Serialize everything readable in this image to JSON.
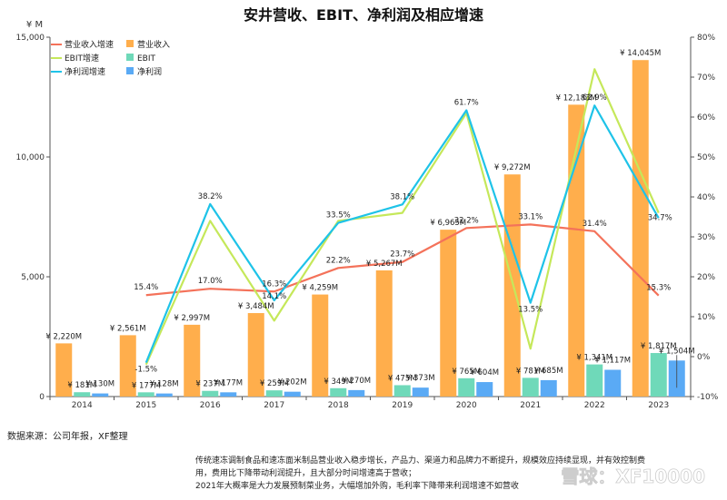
{
  "chart_data": {
    "type": "bar",
    "title": "安井营收、EBIT、净利润及相应增速",
    "y_left_unit": "¥ M",
    "y_left_ticks": [
      "0",
      "5,000",
      "10,000",
      "15,000"
    ],
    "y_left_range": [
      0,
      15000
    ],
    "y_right_ticks": [
      "-10%",
      "0%",
      "10%",
      "20%",
      "30%",
      "40%",
      "50%",
      "60%",
      "70%",
      "80%"
    ],
    "y_right_range": [
      -10,
      80
    ],
    "categories": [
      "2014",
      "2015",
      "2016",
      "2017",
      "2018",
      "2019",
      "2020",
      "2021",
      "2022",
      "2023"
    ],
    "bar_series": [
      {
        "name": "营业收入",
        "color": "#ffae4c",
        "values": [
          2220,
          2561,
          2997,
          3484,
          4259,
          5267,
          6965,
          9272,
          12183,
          14045
        ],
        "labels": [
          "¥ 2,220M",
          "¥ 2,561M",
          "¥ 2,997M",
          "¥ 3,484M",
          "¥ 4,259M",
          "¥ 5,267M",
          "¥ 6,965M",
          "¥ 9,272M",
          "¥ 12,183M",
          "¥ 14,045M"
        ]
      },
      {
        "name": "EBIT",
        "color": "#6fd9b9",
        "values": [
          181,
          177,
          237,
          259,
          349,
          475,
          765,
          781,
          1341,
          1817
        ],
        "labels": [
          "¥ 181M",
          "¥ 177M",
          "¥ 237M",
          "¥ 259M",
          "¥ 349M",
          "¥ 475M",
          "¥ 765M",
          "¥ 781M",
          "¥ 1,341M",
          "¥ 1,817M"
        ]
      },
      {
        "name": "净利润",
        "color": "#5aaaf5",
        "values": [
          130,
          128,
          177,
          202,
          270,
          373,
          604,
          685,
          1117,
          1504
        ],
        "labels": [
          "¥ 130M",
          "¥ 128M",
          "¥ 177M",
          "¥ 202M",
          "¥ 270M",
          "¥ 373M",
          "¥ 604M",
          "¥ 685M",
          "¥ 1,117M",
          "¥ 1,504M"
        ]
      }
    ],
    "line_series": [
      {
        "name": "营业收入增速",
        "color": "#f4725a",
        "values": [
          null,
          15.4,
          17.0,
          16.3,
          22.2,
          23.7,
          32.2,
          33.1,
          31.4,
          15.3
        ],
        "labels": [
          null,
          "15.4%",
          "17.0%",
          "16.3%",
          "22.2%",
          "23.7%",
          "32.2%",
          "33.1%",
          "31.4%",
          "15.3%"
        ]
      },
      {
        "name": "EBIT增速",
        "color": "#c5e85a",
        "values": [
          null,
          -2.0,
          34.0,
          9.0,
          34.0,
          36.0,
          61.0,
          2.0,
          72.0,
          36.0
        ],
        "labels": [
          null,
          null,
          null,
          null,
          null,
          null,
          null,
          null,
          null,
          null
        ]
      },
      {
        "name": "净利润增速",
        "color": "#1ec3e8",
        "values": [
          null,
          -1.5,
          38.2,
          14.1,
          33.5,
          38.1,
          61.7,
          13.5,
          62.9,
          34.7
        ],
        "labels": [
          null,
          "-1.5%",
          "38.2%",
          "14.1%",
          "33.5%",
          "38.1%",
          "61.7%",
          "13.5%",
          "62.9%",
          "34.7%"
        ]
      }
    ],
    "legend": [
      {
        "name": "营业收入增速",
        "kind": "line",
        "color": "#f4725a"
      },
      {
        "name": "营业收入",
        "kind": "box",
        "color": "#ffae4c"
      },
      {
        "name": "EBIT增速",
        "kind": "line",
        "color": "#c5e85a"
      },
      {
        "name": "EBIT",
        "kind": "box",
        "color": "#6fd9b9"
      },
      {
        "name": "净利润增速",
        "kind": "line",
        "color": "#1ec3e8"
      },
      {
        "name": "净利润",
        "kind": "box",
        "color": "#5aaaf5"
      }
    ],
    "legend_position": "top-left",
    "grid": false
  },
  "source": "数据来源：公司年报，XF整理",
  "notes": [
    "传统速冻调制食品和速冻面米制品营业收入稳步增长，产品力、渠道力和品牌力不断提升，规模效应持续显现，并有效控制费",
    "用，费用比下降带动利润提升，且大部分时间增速高于营收；",
    "2021年大概率是大力发展预制菜业务，大幅增加外购，毛利率下降带来利润增速不如营收"
  ],
  "watermark": "雪球：XF10000"
}
